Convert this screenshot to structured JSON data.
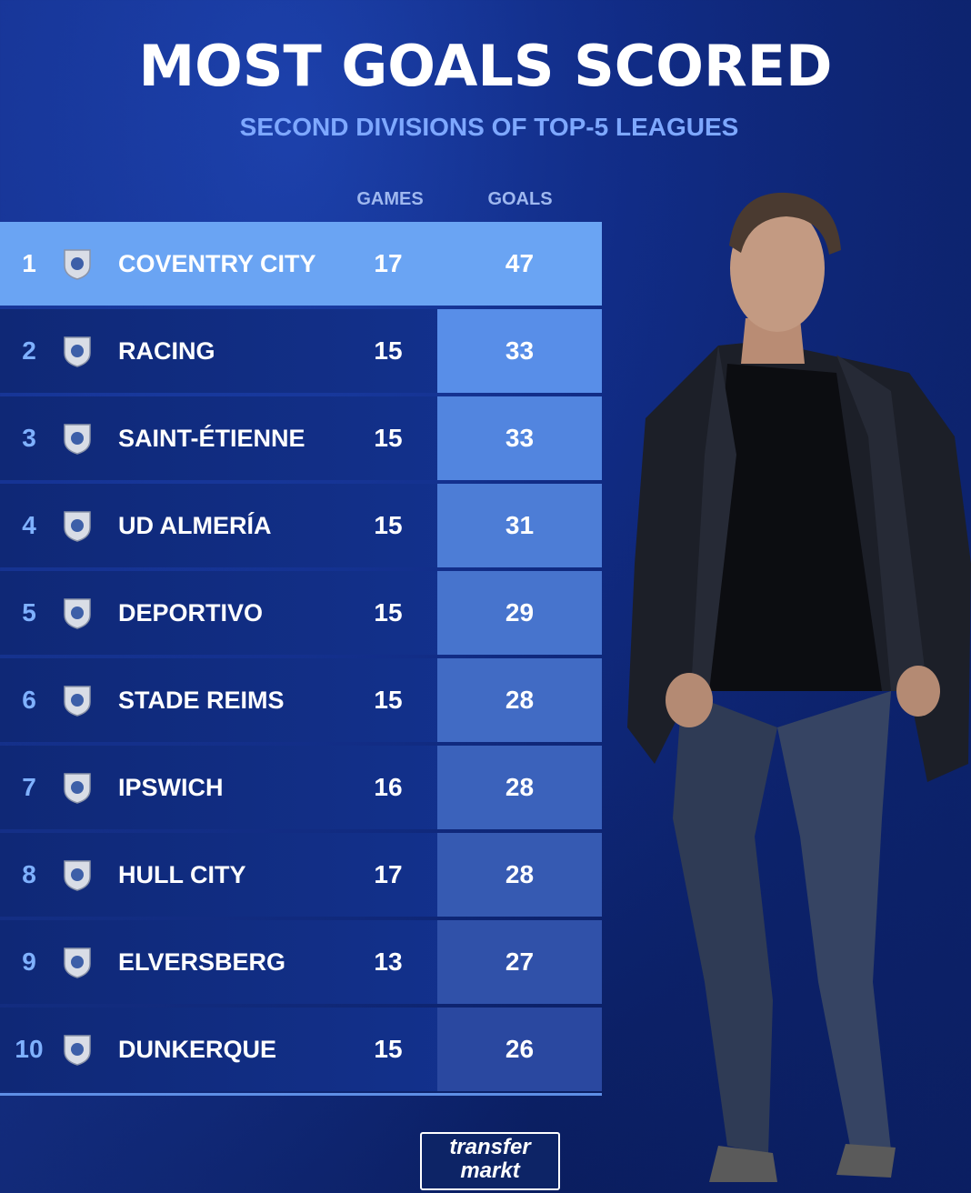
{
  "header": {
    "title": "MOST GOALS SCORED",
    "subtitle": "SECOND DIVISIONS OF TOP-5 LEAGUES"
  },
  "columns": {
    "games": "GAMES",
    "goals": "GOALS"
  },
  "rows": [
    {
      "rank": "1",
      "team": "COVENTRY CITY",
      "games": "17",
      "goals": "47",
      "crest": "coventry-crest-icon"
    },
    {
      "rank": "2",
      "team": "RACING",
      "games": "15",
      "goals": "33",
      "crest": "racing-crest-icon"
    },
    {
      "rank": "3",
      "team": "SAINT-ÉTIENNE",
      "games": "15",
      "goals": "33",
      "crest": "saint-etienne-crest-icon"
    },
    {
      "rank": "4",
      "team": "UD ALMERÍA",
      "games": "15",
      "goals": "31",
      "crest": "almeria-crest-icon"
    },
    {
      "rank": "5",
      "team": "DEPORTIVO",
      "games": "15",
      "goals": "29",
      "crest": "deportivo-crest-icon"
    },
    {
      "rank": "6",
      "team": "STADE REIMS",
      "games": "15",
      "goals": "28",
      "crest": "reims-crest-icon"
    },
    {
      "rank": "7",
      "team": "IPSWICH",
      "games": "16",
      "goals": "28",
      "crest": "ipswich-crest-icon"
    },
    {
      "rank": "8",
      "team": "HULL CITY",
      "games": "17",
      "goals": "28",
      "crest": "hull-crest-icon"
    },
    {
      "rank": "9",
      "team": "ELVERSBERG",
      "games": "13",
      "goals": "27",
      "crest": "elversberg-crest-icon"
    },
    {
      "rank": "10",
      "team": "DUNKERQUE",
      "games": "15",
      "goals": "26",
      "crest": "dunkerque-crest-icon"
    }
  ],
  "logo": {
    "line1": "transfer",
    "line2": "markt"
  },
  "colors": {
    "background": "#112c86",
    "highlight_row": "#6aa4f3",
    "subtitle": "#7ea8ff",
    "rank_text": "#7fb1ff"
  }
}
